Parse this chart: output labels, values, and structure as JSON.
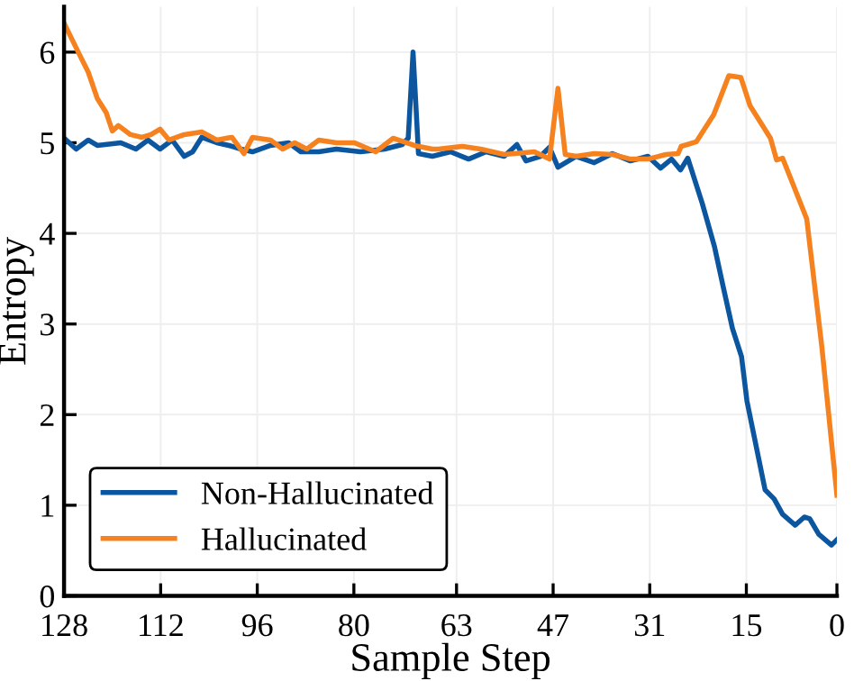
{
  "chart_data": {
    "type": "line",
    "xlabel": "Sample Step",
    "ylabel": "Entropy",
    "xlim": [
      128,
      0
    ],
    "xticks": [
      128,
      112,
      96,
      80,
      63,
      47,
      31,
      15,
      0
    ],
    "ylim": [
      0,
      6.5
    ],
    "yticks": [
      0,
      1,
      2,
      3,
      4,
      5,
      6
    ],
    "grid": true,
    "legend": "bottom left",
    "series": [
      {
        "name": "Non-Hallucinated",
        "color": "#0c56a0",
        "x": [
          128,
          126,
          124,
          122.5,
          118.6,
          116.1,
          114.1,
          112.1,
          110.1,
          108.1,
          106.7,
          105.2,
          102.7,
          100.7,
          98.7,
          96.8,
          93.8,
          90.8,
          88.8,
          85.8,
          82.9,
          78.9,
          74.9,
          72.0,
          71.0,
          70.2,
          69.3,
          67.0,
          64.0,
          61.0,
          58.1,
          55.1,
          53.0,
          51.5,
          49.1,
          47.6,
          46.2,
          43.2,
          40.2,
          37.2,
          34.2,
          31.3,
          29.2,
          27.4,
          25.9,
          24.7,
          22.3,
          20.3,
          18.8,
          17.3,
          15.8,
          14.9,
          11.9,
          10.4,
          9.0,
          6.9,
          5.4,
          4.5,
          3.0,
          0.9,
          0
        ],
        "values": [
          5.05,
          4.93,
          5.03,
          4.97,
          5.0,
          4.93,
          5.03,
          4.93,
          5.03,
          4.85,
          4.9,
          5.06,
          5.0,
          4.97,
          4.93,
          4.9,
          4.97,
          5.0,
          4.9,
          4.9,
          4.93,
          4.9,
          4.93,
          4.98,
          5.05,
          6.0,
          4.88,
          4.85,
          4.9,
          4.82,
          4.9,
          4.85,
          4.98,
          4.8,
          4.85,
          4.95,
          4.73,
          4.85,
          4.78,
          4.88,
          4.8,
          4.85,
          4.72,
          4.82,
          4.7,
          4.83,
          4.33,
          3.86,
          3.4,
          2.95,
          2.64,
          2.15,
          1.17,
          1.07,
          0.9,
          0.78,
          0.87,
          0.85,
          0.68,
          0.56,
          0.62
        ]
      },
      {
        "name": "Hallucinated",
        "color": "#f5821f",
        "x": [
          128,
          125.5,
          124,
          122.5,
          121,
          120,
          119,
          117,
          115.1,
          113.6,
          112.1,
          110.6,
          108.1,
          105.2,
          102.7,
          100.2,
          98.2,
          96.8,
          93.8,
          91.8,
          89.8,
          87.8,
          85.8,
          82.9,
          79.9,
          76.4,
          73.5,
          70.0,
          67.0,
          66.0,
          62.0,
          59.0,
          55.1,
          50.1,
          47.6,
          46.2,
          45.0,
          43.2,
          40.2,
          37.2,
          34.2,
          31.3,
          28.3,
          26.3,
          25.8,
          23.3,
          20.4,
          17.9,
          15.9,
          14.4,
          11.0,
          10.0,
          9.0,
          5.0,
          2.5,
          0
        ],
        "values": [
          6.32,
          5.98,
          5.78,
          5.49,
          5.33,
          5.13,
          5.19,
          5.09,
          5.06,
          5.09,
          5.15,
          5.03,
          5.09,
          5.12,
          5.03,
          5.06,
          4.88,
          5.06,
          5.03,
          4.93,
          5.0,
          4.93,
          5.03,
          5.0,
          5.0,
          4.9,
          5.05,
          4.97,
          4.93,
          4.93,
          4.96,
          4.93,
          4.87,
          4.9,
          4.82,
          5.6,
          4.87,
          4.85,
          4.88,
          4.87,
          4.82,
          4.82,
          4.87,
          4.88,
          4.96,
          5.01,
          5.31,
          5.74,
          5.72,
          5.41,
          5.05,
          4.81,
          4.83,
          4.16,
          2.75,
          1.11
        ]
      }
    ]
  }
}
